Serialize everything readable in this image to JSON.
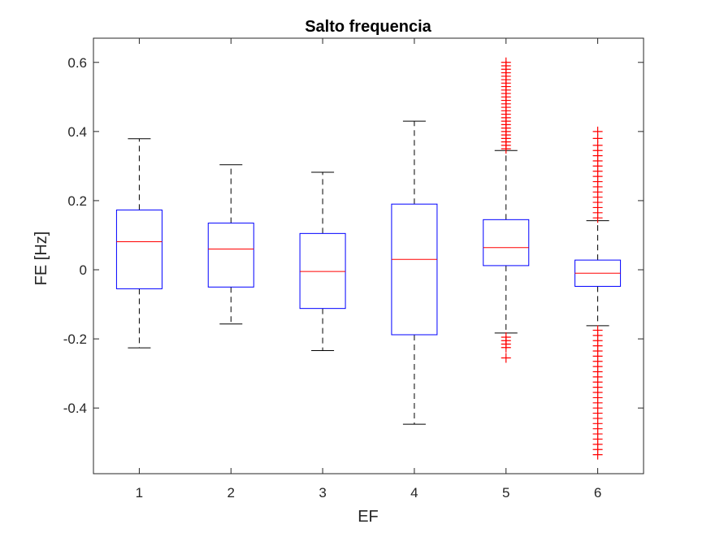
{
  "chart_data": {
    "type": "box",
    "title": "Salto frequencia",
    "xlabel": "EF",
    "ylabel": "FE [Hz]",
    "categories": [
      "1",
      "2",
      "3",
      "4",
      "5",
      "6"
    ],
    "ylim": [
      -0.59,
      0.67
    ],
    "yticks": [
      -0.4,
      -0.2,
      0,
      0.2,
      0.4,
      0.6
    ],
    "ytick_labels": [
      "-0.4",
      "-0.2",
      "0",
      "0.2",
      "0.4",
      "0.6"
    ],
    "grid": false,
    "colors": {
      "box": "#0000ff",
      "median": "#ff0000",
      "whisker": "#000000",
      "outlier": "#ff0000",
      "axes": "#262626"
    },
    "boxes": [
      {
        "category": "1",
        "q1": -0.055,
        "median": 0.081,
        "q3": 0.173,
        "whisker_low": -0.226,
        "whisker_high": 0.379,
        "outliers": []
      },
      {
        "category": "2",
        "q1": -0.05,
        "median": 0.06,
        "q3": 0.135,
        "whisker_low": -0.157,
        "whisker_high": 0.304,
        "outliers": []
      },
      {
        "category": "3",
        "q1": -0.112,
        "median": -0.005,
        "q3": 0.105,
        "whisker_low": -0.234,
        "whisker_high": 0.282,
        "outliers": []
      },
      {
        "category": "4",
        "q1": -0.188,
        "median": 0.03,
        "q3": 0.19,
        "whisker_low": -0.447,
        "whisker_high": 0.43,
        "outliers": []
      },
      {
        "category": "5",
        "q1": 0.012,
        "median": 0.064,
        "q3": 0.145,
        "whisker_low": -0.183,
        "whisker_high": 0.345,
        "outliers": [
          -0.255,
          -0.225,
          -0.215,
          -0.205,
          -0.195,
          0.35,
          0.36,
          0.37,
          0.38,
          0.39,
          0.4,
          0.41,
          0.42,
          0.43,
          0.44,
          0.45,
          0.46,
          0.47,
          0.48,
          0.49,
          0.5,
          0.51,
          0.52,
          0.53,
          0.54,
          0.55,
          0.56,
          0.57,
          0.58,
          0.59,
          0.6
        ]
      },
      {
        "category": "6",
        "q1": -0.048,
        "median": -0.01,
        "q3": 0.028,
        "whisker_low": -0.162,
        "whisker_high": 0.142,
        "outliers": [
          -0.535,
          -0.52,
          -0.505,
          -0.49,
          -0.475,
          -0.46,
          -0.445,
          -0.43,
          -0.415,
          -0.4,
          -0.385,
          -0.37,
          -0.355,
          -0.34,
          -0.325,
          -0.31,
          -0.295,
          -0.28,
          -0.265,
          -0.25,
          -0.235,
          -0.22,
          -0.205,
          -0.19,
          -0.175,
          0.15,
          0.165,
          0.18,
          0.195,
          0.21,
          0.225,
          0.24,
          0.255,
          0.27,
          0.285,
          0.3,
          0.315,
          0.33,
          0.345,
          0.36,
          0.38,
          0.4
        ]
      }
    ]
  }
}
